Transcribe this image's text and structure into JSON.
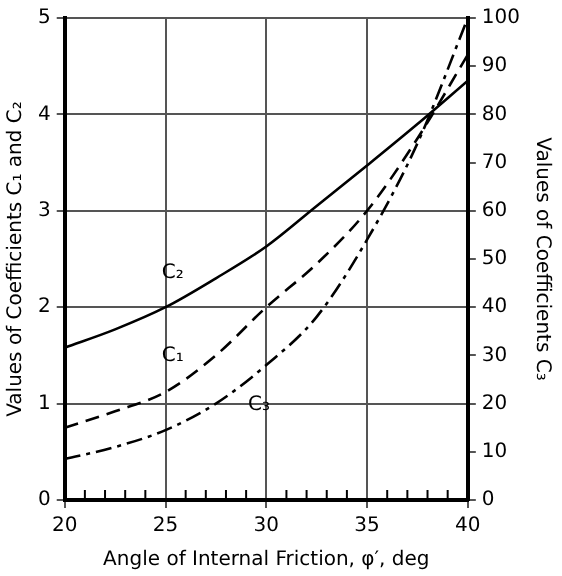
{
  "chart_data": {
    "type": "line",
    "xlabel": "Angle of Internal Friction, φ′, deg",
    "ylabel": "Values of Coefficients C₁ and C₂",
    "y2label": "Values of Coefficients C₃",
    "x": [
      20,
      22.5,
      25,
      27.5,
      30,
      32.5,
      35,
      37.5,
      40
    ],
    "series": [
      {
        "name": "C₁",
        "color": "#000000",
        "line_style": "dashed",
        "values": [
          0.75,
          0.92,
          1.12,
          1.5,
          2.0,
          2.45,
          3.0,
          3.75,
          4.62
        ]
      },
      {
        "name": "C₂",
        "color": "#000000",
        "line_style": "solid",
        "values": [
          1.58,
          1.77,
          2.0,
          2.3,
          2.63,
          3.05,
          3.47,
          3.9,
          4.35
        ]
      },
      {
        "name": "C₃",
        "color": "#000000",
        "line_style": "dashdot",
        "axis": "y2",
        "values": [
          8.5,
          11,
          14.5,
          20,
          28,
          38,
          54,
          74,
          100
        ]
      }
    ],
    "xlim": [
      20,
      40
    ],
    "xticks": [
      20,
      {
        "value": 21,
        "label": null
      },
      {
        "value": 22,
        "label": null
      },
      {
        "value": 23,
        "label": null
      },
      {
        "value": 24,
        "label": null
      },
      25,
      {
        "value": 26,
        "label": null
      },
      {
        "value": 27,
        "label": null
      },
      {
        "value": 28,
        "label": null
      },
      {
        "value": 29,
        "label": null
      },
      30,
      {
        "value": 31,
        "label": null
      },
      {
        "value": 32,
        "label": null
      },
      {
        "value": 33,
        "label": null
      },
      {
        "value": 34,
        "label": null
      },
      35,
      {
        "value": 36,
        "label": null
      },
      {
        "value": 37,
        "label": null
      },
      {
        "value": 38,
        "label": null
      },
      {
        "value": 39,
        "label": null
      },
      40
    ],
    "ylim": [
      0,
      5
    ],
    "yticks": [
      0,
      1,
      2,
      3,
      4,
      5
    ],
    "y2lim": [
      0,
      100
    ],
    "y2ticks": [
      0,
      10,
      20,
      30,
      40,
      50,
      60,
      70,
      80,
      90,
      100
    ],
    "grid": true,
    "legend": false,
    "marker": "none"
  }
}
